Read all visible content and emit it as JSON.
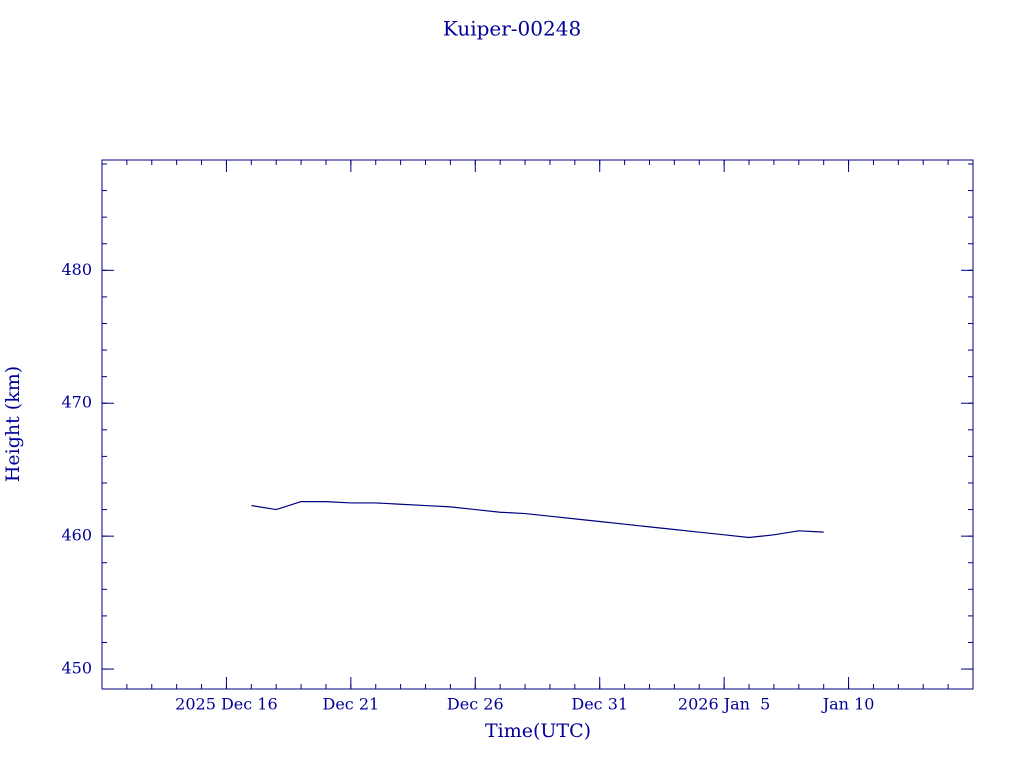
{
  "chart_data": {
    "type": "line",
    "title": "Kuiper-00248",
    "x_label": "Time(UTC)",
    "y_label": "Height (km)",
    "x": [
      "2025-12-17",
      "2025-12-18",
      "2025-12-19",
      "2025-12-20",
      "2025-12-21",
      "2025-12-22",
      "2025-12-23",
      "2025-12-24",
      "2025-12-25",
      "2025-12-26",
      "2025-12-27",
      "2025-12-28",
      "2025-12-29",
      "2025-12-30",
      "2025-12-31",
      "2026-01-01",
      "2026-01-02",
      "2026-01-03",
      "2026-01-04",
      "2026-01-05",
      "2026-01-06",
      "2026-01-07",
      "2026-01-08",
      "2026-01-09"
    ],
    "series": [
      {
        "name": "Height",
        "color": "#000080",
        "values": [
          462.3,
          462.0,
          462.6,
          462.6,
          462.5,
          462.5,
          462.4,
          462.3,
          462.2,
          462.0,
          461.8,
          461.7,
          461.5,
          461.3,
          461.1,
          460.9,
          460.7,
          460.5,
          460.3,
          460.1,
          459.9,
          460.1,
          460.4,
          460.3
        ]
      }
    ],
    "xlim": [
      "2025-12-11",
      "2026-01-15"
    ],
    "xticks": [
      {
        "value": "2025-12-16",
        "label": "2025 Dec 16"
      },
      {
        "value": "2025-12-21",
        "label": "Dec 21"
      },
      {
        "value": "2025-12-26",
        "label": "Dec 26"
      },
      {
        "value": "2025-12-31",
        "label": "Dec 31"
      },
      {
        "value": "2026-01-05",
        "label": "2026 Jan  5"
      },
      {
        "value": "2026-01-10",
        "label": "Jan 10"
      }
    ],
    "ylim": [
      448.5,
      488.3
    ],
    "yticks": [
      450,
      460,
      470,
      480
    ]
  }
}
